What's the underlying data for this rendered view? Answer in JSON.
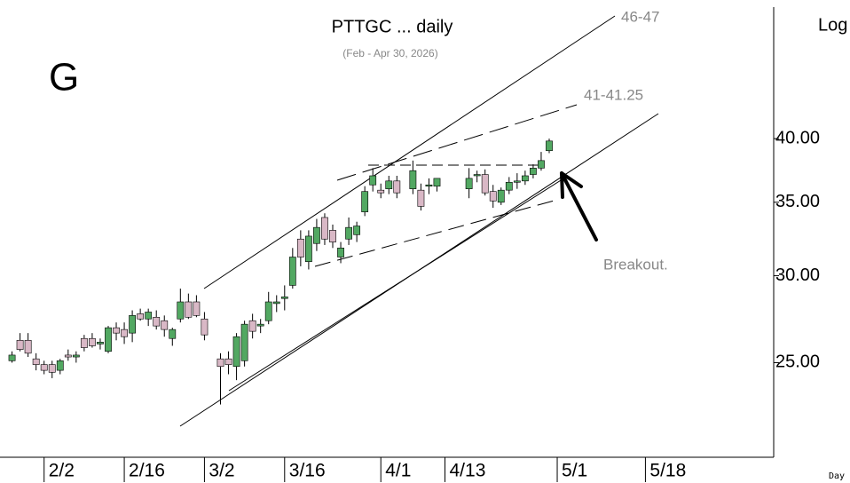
{
  "chart_data": {
    "type": "candlestick",
    "title": "PTTGC ... daily",
    "subtitle": "(Feb - Apr 30, 2026)",
    "annotations": [
      "G",
      "46-47",
      "41-41.25",
      "Breakout.",
      "Log",
      "Day"
    ],
    "log_scale": true,
    "up_color": "#52a862",
    "down_color": "#d9b8c6",
    "x": [
      0,
      1,
      2,
      3,
      4,
      5,
      6,
      7,
      8,
      9,
      10,
      11,
      12,
      13,
      14,
      15,
      16,
      17,
      18,
      19,
      20,
      21,
      22,
      23,
      24,
      26,
      27,
      28,
      29,
      30,
      31,
      32,
      33,
      34,
      35,
      36,
      37,
      38,
      39,
      40,
      41,
      42,
      43,
      44,
      45,
      46,
      47,
      48,
      50,
      51,
      52,
      53,
      57,
      58,
      59,
      60,
      61,
      62,
      63,
      64,
      65,
      66,
      67
    ],
    "open": [
      25.1,
      26.2,
      26.2,
      25.2,
      24.9,
      24.9,
      24.6,
      25.4,
      25.3,
      26.3,
      26.3,
      26.0,
      25.6,
      26.9,
      26.8,
      26.6,
      27.7,
      27.4,
      27.5,
      27.3,
      26.3,
      27.4,
      28.4,
      28.4,
      27.4,
      25.2,
      25.2,
      24.8,
      25.1,
      27.3,
      27.0,
      27.3,
      28.3,
      28.6,
      29.4,
      32.4,
      30.9,
      32.1,
      33.9,
      33.0,
      31.2,
      32.4,
      32.7,
      34.3,
      36.3,
      35.9,
      36.0,
      36.6,
      36.0,
      35.9,
      36.2,
      36.2,
      36.0,
      37.0,
      37.1,
      35.8,
      35.0,
      35.9,
      36.5,
      36.6,
      37.1,
      37.6,
      39.0
    ],
    "high": [
      25.6,
      26.6,
      26.6,
      25.5,
      25.1,
      25.1,
      25.2,
      25.7,
      25.6,
      26.5,
      26.6,
      26.3,
      27.0,
      27.2,
      27.2,
      27.9,
      28.0,
      28.0,
      27.9,
      27.6,
      26.9,
      29.2,
      28.9,
      28.8,
      27.8,
      25.5,
      25.6,
      26.6,
      27.3,
      27.7,
      27.4,
      29.0,
      28.8,
      29.4,
      31.8,
      33.0,
      33.0,
      33.8,
      34.2,
      33.4,
      32.2,
      33.9,
      33.6,
      36.2,
      37.6,
      36.4,
      37.0,
      37.0,
      38.2,
      36.4,
      36.8,
      36.8,
      37.6,
      37.4,
      37.5,
      36.3,
      36.1,
      36.9,
      37.2,
      37.4,
      37.9,
      38.9,
      40.0
    ],
    "low": [
      25.0,
      25.6,
      25.3,
      24.6,
      24.4,
      24.2,
      24.4,
      25.1,
      25.0,
      25.6,
      25.8,
      25.7,
      25.5,
      26.2,
      26.0,
      26.1,
      27.3,
      27.0,
      26.8,
      26.4,
      25.9,
      27.2,
      27.4,
      27.5,
      26.2,
      22.9,
      24.4,
      24.1,
      24.8,
      26.3,
      26.6,
      27.1,
      27.8,
      27.9,
      29.2,
      30.6,
      30.4,
      31.6,
      32.0,
      31.8,
      30.8,
      32.0,
      32.2,
      34.0,
      35.8,
      35.3,
      35.6,
      35.3,
      35.6,
      34.4,
      35.6,
      35.8,
      35.3,
      36.5,
      35.5,
      34.6,
      34.8,
      35.6,
      36.0,
      36.3,
      36.8,
      37.4,
      38.8
    ],
    "close": [
      25.4,
      25.7,
      25.5,
      24.9,
      24.6,
      24.5,
      25.1,
      25.3,
      25.4,
      25.8,
      25.9,
      26.1,
      26.9,
      26.6,
      26.4,
      27.6,
      27.4,
      27.8,
      27.0,
      26.8,
      26.8,
      28.4,
      27.5,
      27.6,
      26.5,
      24.8,
      24.9,
      26.4,
      27.1,
      26.7,
      27.1,
      28.4,
      28.4,
      28.7,
      31.2,
      31.2,
      32.6,
      33.2,
      32.4,
      32.2,
      31.8,
      33.2,
      33.3,
      35.8,
      37.0,
      35.7,
      36.6,
      35.7,
      37.4,
      34.7,
      36.3,
      36.8,
      36.8,
      37.1,
      35.7,
      35.1,
      35.9,
      36.5,
      36.6,
      37.0,
      37.6,
      38.2,
      39.8
    ],
    "xlim": [
      -1.5,
      95
    ],
    "xticks": [
      {
        "value": 4,
        "label": "2/2"
      },
      {
        "value": 14,
        "label": "2/16"
      },
      {
        "value": 24,
        "label": "3/2"
      },
      {
        "value": 34,
        "label": "3/16"
      },
      {
        "value": 46,
        "label": "4/1"
      },
      {
        "value": 54,
        "label": "4/13"
      },
      {
        "value": 68,
        "label": "5/1"
      },
      {
        "value": 79,
        "label": "5/18"
      }
    ],
    "ylim": [
      20.5,
      53.5
    ],
    "yticks": [
      {
        "value": 25,
        "label": "25.00"
      },
      {
        "value": 30,
        "label": "30.00"
      },
      {
        "value": 35,
        "label": "35.00"
      },
      {
        "value": 40,
        "label": "40.00"
      }
    ]
  }
}
